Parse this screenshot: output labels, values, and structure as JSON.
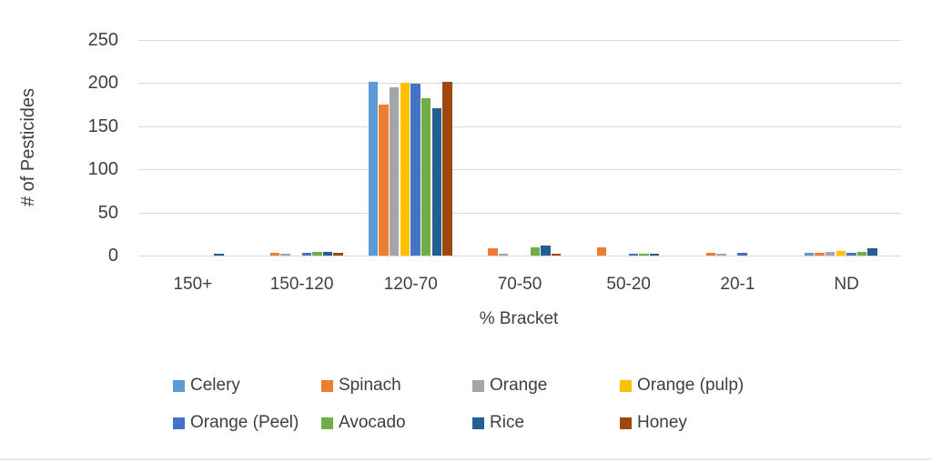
{
  "chart_data": {
    "type": "bar",
    "title": "",
    "xlabel": "% Bracket",
    "ylabel": "# of Pesticides",
    "ylim": [
      0,
      250
    ],
    "yticks": [
      0,
      50,
      100,
      150,
      200,
      250
    ],
    "grid": true,
    "legend_position": "bottom",
    "categories": [
      "150+",
      "150-120",
      "120-70",
      "70-50",
      "50-20",
      "20-1",
      "ND"
    ],
    "series": [
      {
        "name": "Celery",
        "color": "#5b9bd5",
        "values": [
          0,
          0,
          201,
          0,
          0,
          0,
          3
        ]
      },
      {
        "name": "Spinach",
        "color": "#ed7d31",
        "values": [
          0,
          3,
          175,
          8,
          10,
          3,
          3
        ]
      },
      {
        "name": "Orange",
        "color": "#a5a5a5",
        "values": [
          0,
          2,
          195,
          2,
          0,
          2,
          4
        ]
      },
      {
        "name": "Orange (pulp)",
        "color": "#ffc000",
        "values": [
          0,
          0,
          200,
          0,
          0,
          0,
          5
        ]
      },
      {
        "name": "Orange (Peel)",
        "color": "#4472c4",
        "values": [
          0,
          3,
          199,
          0,
          2,
          3,
          3
        ]
      },
      {
        "name": "Avocado",
        "color": "#70ad47",
        "values": [
          0,
          4,
          183,
          9,
          2,
          0,
          4
        ]
      },
      {
        "name": "Rice",
        "color": "#255e91",
        "values": [
          2,
          4,
          171,
          12,
          2,
          0,
          8
        ]
      },
      {
        "name": "Honey",
        "color": "#9e480e",
        "values": [
          0,
          3,
          201,
          2,
          0,
          0,
          0
        ]
      }
    ]
  },
  "colors": {
    "gridline": "#d9d9d9",
    "axis_text": "#3f3f3f",
    "bottom_rule": "#e3e9f1",
    "background": "#ffffff"
  }
}
